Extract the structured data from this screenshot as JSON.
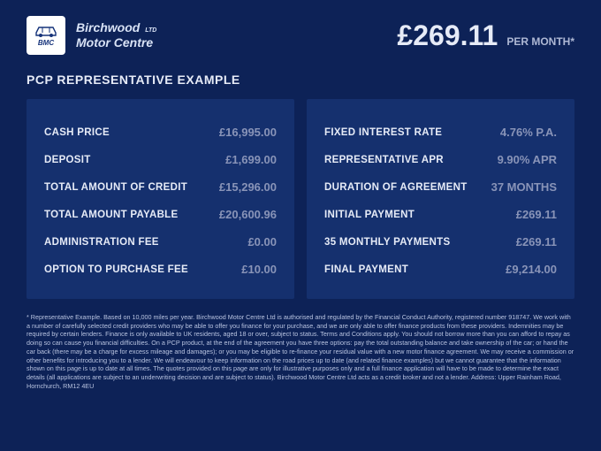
{
  "colors": {
    "background": "#0d2257",
    "card_background": "#15306e",
    "text_primary": "#e6ebf7",
    "text_muted": "#8994b8",
    "text_disclaimer": "#b8c3e0",
    "logo_bg": "#ffffff",
    "logo_fg": "#16337a"
  },
  "brand": {
    "line1": "Birchwood",
    "line2": "Motor Centre",
    "ltd": "LTD",
    "abbrev": "BMC"
  },
  "price": {
    "amount": "£269.11",
    "per_month": "PER MONTH*"
  },
  "section_title": "PCP REPRESENTATIVE EXAMPLE",
  "left_rows": [
    {
      "label": "CASH PRICE",
      "value": "£16,995.00"
    },
    {
      "label": "DEPOSIT",
      "value": "£1,699.00"
    },
    {
      "label": "TOTAL AMOUNT OF CREDIT",
      "value": "£15,296.00"
    },
    {
      "label": "TOTAL AMOUNT PAYABLE",
      "value": "£20,600.96"
    },
    {
      "label": "ADMINISTRATION FEE",
      "value": "£0.00"
    },
    {
      "label": "OPTION TO PURCHASE FEE",
      "value": "£10.00"
    }
  ],
  "right_rows": [
    {
      "label": "FIXED INTEREST RATE",
      "value": "4.76% P.A."
    },
    {
      "label": "REPRESENTATIVE APR",
      "value": "9.90% APR"
    },
    {
      "label": "DURATION OF AGREEMENT",
      "value": "37 MONTHS"
    },
    {
      "label": "INITIAL PAYMENT",
      "value": "£269.11"
    },
    {
      "label": "35 MONTHLY PAYMENTS",
      "value": "£269.11"
    },
    {
      "label": "FINAL PAYMENT",
      "value": "£9,214.00"
    }
  ],
  "disclaimer": "* Representative Example. Based on 10,000 miles per year. Birchwood Motor Centre Ltd is authorised and regulated by the Financial Conduct Authority, registered number 918747. We work with a number of carefully selected credit providers who may be able to offer you finance for your purchase, and we are only able to offer finance products from these providers. Indemnities may be required by certain lenders. Finance is only available to UK residents, aged 18 or over, subject to status. Terms and Conditions apply. You should not borrow more than you can afford to repay as doing so can cause you financial difficulties. On a PCP product, at the end of the agreement you have three options: pay the total outstanding balance and take ownership of the car; or hand the car back (there may be a charge for excess mileage and damages); or you may be eligible to re-finance your residual value with a new motor finance agreement. We may receive a commission or other benefits for introducing you to a lender. We will endeavour to keep information on the road prices up to date (and related finance examples) but we cannot guarantee that the information shown on this page is up to date at all times. The quotes provided on this page are only for illustrative purposes only and a full finance application will have to be made to determine the exact details (all applications are subject to an underwriting decision and are subject to status). Birchwood Motor Centre Ltd acts as a credit broker and not a lender. Address: Upper Rainham Road, Hornchurch, RM12 4EU"
}
